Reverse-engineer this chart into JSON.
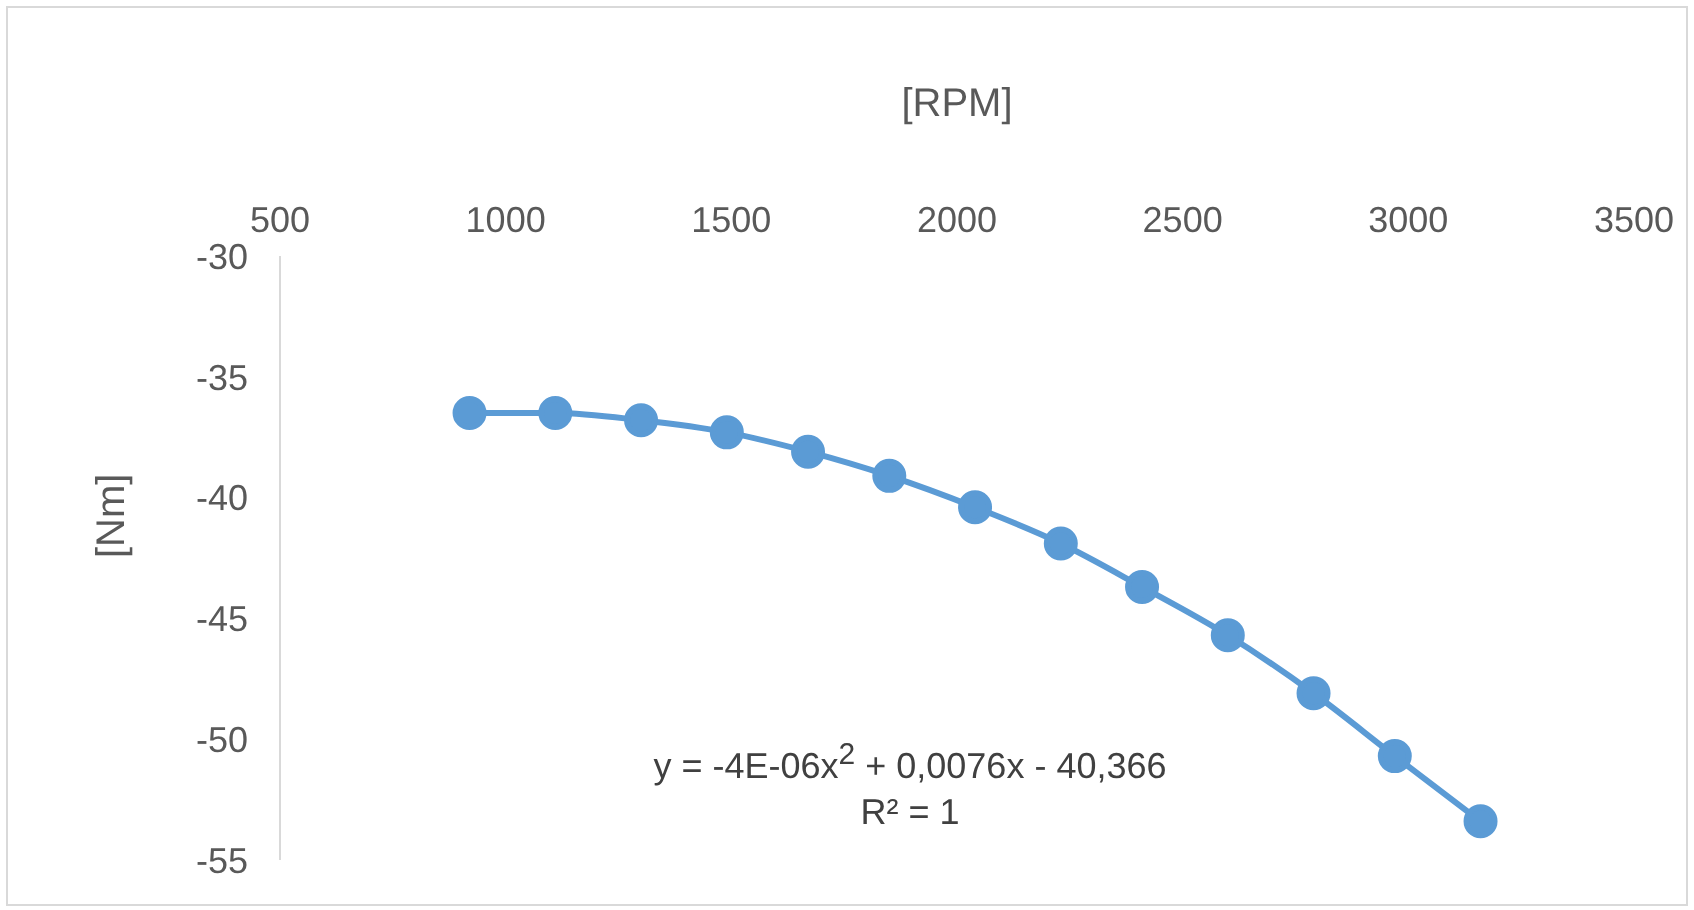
{
  "chart_data": {
    "type": "line",
    "xlabel": "[RPM]",
    "ylabel": "[Nm]",
    "x": [
      920,
      1110,
      1300,
      1490,
      1670,
      1850,
      2040,
      2230,
      2410,
      2600,
      2790,
      2970,
      3160
    ],
    "series": [
      {
        "color": "#5b9bd5",
        "values": [
          -36.5,
          -36.5,
          -36.8,
          -37.3,
          -38.1,
          -39.1,
          -40.4,
          -41.9,
          -43.7,
          -45.7,
          -48.1,
          -50.7,
          -53.4
        ]
      }
    ],
    "xlim": [
      500,
      3500
    ],
    "xticks": [
      500,
      1000,
      1500,
      2000,
      2500,
      3000,
      3500
    ],
    "ylim": [
      -55,
      -30
    ],
    "yticks": [
      -30,
      -35,
      -40,
      -45,
      -50,
      -55
    ],
    "grid": false,
    "legend": false,
    "marker": "circle",
    "line_style": "solid",
    "annotations": [
      "y = -4E-06x$^{2}$ + 0,0076x - 40,366",
      "R² = 1"
    ]
  }
}
